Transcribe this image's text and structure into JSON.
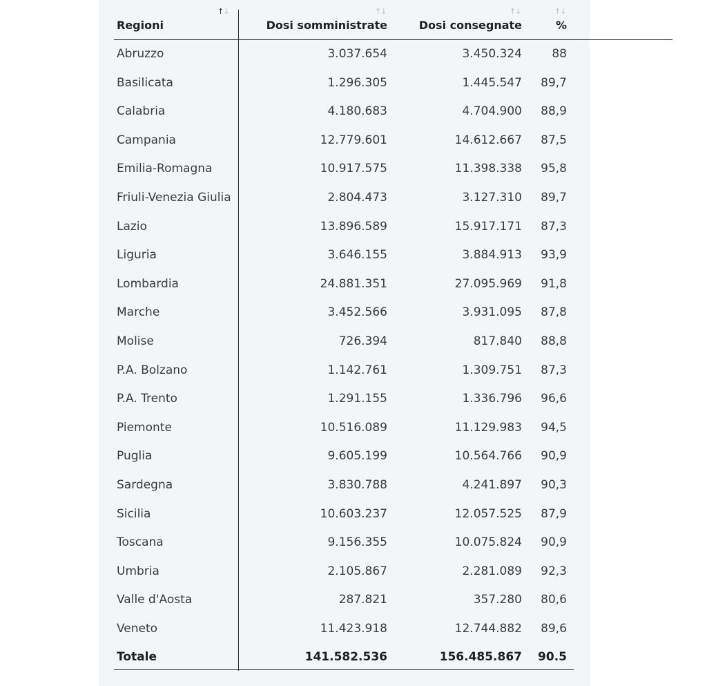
{
  "table": {
    "headers": {
      "region": "Regioni",
      "administered": "Dosi somministrate",
      "delivered": "Dosi consegnate",
      "percent": "%"
    },
    "sort_glyph": "↑↓",
    "rows": [
      {
        "region": "Abruzzo",
        "administered": "3.037.654",
        "delivered": "3.450.324",
        "percent": "88"
      },
      {
        "region": "Basilicata",
        "administered": "1.296.305",
        "delivered": "1.445.547",
        "percent": "89,7"
      },
      {
        "region": "Calabria",
        "administered": "4.180.683",
        "delivered": "4.704.900",
        "percent": "88,9"
      },
      {
        "region": "Campania",
        "administered": "12.779.601",
        "delivered": "14.612.667",
        "percent": "87,5"
      },
      {
        "region": "Emilia-Romagna",
        "administered": "10.917.575",
        "delivered": "11.398.338",
        "percent": "95,8"
      },
      {
        "region": "Friuli-Venezia Giulia",
        "administered": "2.804.473",
        "delivered": "3.127.310",
        "percent": "89,7"
      },
      {
        "region": "Lazio",
        "administered": "13.896.589",
        "delivered": "15.917.171",
        "percent": "87,3"
      },
      {
        "region": "Liguria",
        "administered": "3.646.155",
        "delivered": "3.884.913",
        "percent": "93,9"
      },
      {
        "region": "Lombardia",
        "administered": "24.881.351",
        "delivered": "27.095.969",
        "percent": "91,8"
      },
      {
        "region": "Marche",
        "administered": "3.452.566",
        "delivered": "3.931.095",
        "percent": "87,8"
      },
      {
        "region": "Molise",
        "administered": "726.394",
        "delivered": "817.840",
        "percent": "88,8"
      },
      {
        "region": "P.A. Bolzano",
        "administered": "1.142.761",
        "delivered": "1.309.751",
        "percent": "87,3"
      },
      {
        "region": "P.A. Trento",
        "administered": "1.291.155",
        "delivered": "1.336.796",
        "percent": "96,6"
      },
      {
        "region": "Piemonte",
        "administered": "10.516.089",
        "delivered": "11.129.983",
        "percent": "94,5"
      },
      {
        "region": "Puglia",
        "administered": "9.605.199",
        "delivered": "10.564.766",
        "percent": "90,9"
      },
      {
        "region": "Sardegna",
        "administered": "3.830.788",
        "delivered": "4.241.897",
        "percent": "90,3"
      },
      {
        "region": "Sicilia",
        "administered": "10.603.237",
        "delivered": "12.057.525",
        "percent": "87,9"
      },
      {
        "region": "Toscana",
        "administered": "9.156.355",
        "delivered": "10.075.824",
        "percent": "90,9"
      },
      {
        "region": "Umbria",
        "administered": "2.105.867",
        "delivered": "2.281.089",
        "percent": "92,3"
      },
      {
        "region": "Valle d'Aosta",
        "administered": "287.821",
        "delivered": "357.280",
        "percent": "80,6"
      },
      {
        "region": "Veneto",
        "administered": "11.423.918",
        "delivered": "12.744.882",
        "percent": "89,6"
      }
    ],
    "total": {
      "region": "Totale",
      "administered": "141.582.536",
      "delivered": "156.485.867",
      "percent": "90.5"
    }
  }
}
